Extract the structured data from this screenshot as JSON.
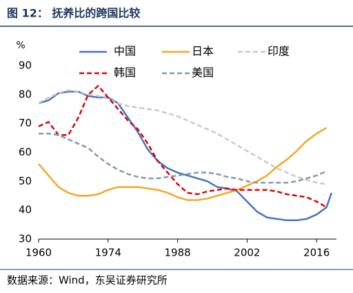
{
  "chart_data": {
    "type": "line",
    "title": "图 12：   抚养比的跨国比较",
    "y_label": "%",
    "source": "数据来源：Wind，东吴证券研究所",
    "x": [
      1960,
      1962,
      1964,
      1966,
      1968,
      1970,
      1972,
      1974,
      1976,
      1978,
      1980,
      1982,
      1984,
      1986,
      1988,
      1990,
      1992,
      1994,
      1996,
      1998,
      2000,
      2002,
      2004,
      2006,
      2008,
      2010,
      2012,
      2014,
      2016,
      2018,
      2019
    ],
    "xlim": [
      1960,
      2020
    ],
    "xticks": [
      1960,
      1974,
      1988,
      2002,
      2016
    ],
    "ylim": [
      30,
      90
    ],
    "yticks": [
      30,
      40,
      50,
      60,
      70,
      80,
      90
    ],
    "grid": false,
    "series": [
      {
        "name": "中国",
        "color": "#4472c4",
        "dashed": false,
        "values": [
          77,
          78,
          80.5,
          81,
          81,
          79.5,
          79,
          79,
          77,
          72,
          67,
          61,
          57,
          54.5,
          53,
          52,
          51,
          50,
          48,
          47.5,
          46.5,
          43,
          39.5,
          37.5,
          37,
          36.5,
          36.5,
          37,
          38.5,
          41,
          46
        ]
      },
      {
        "name": "日本",
        "color": "#f5a623",
        "dashed": false,
        "values": [
          56,
          52,
          48,
          46,
          45,
          45,
          45.5,
          47,
          48,
          48,
          48,
          47.5,
          47,
          46,
          44.5,
          43.5,
          43.5,
          44,
          45,
          46,
          47,
          48.5,
          50,
          52,
          55,
          57.5,
          60.5,
          64,
          66.5,
          68.5,
          null
        ]
      },
      {
        "name": "印度",
        "color": "#c8c8c8",
        "dashed": true,
        "values": [
          77,
          79,
          80.5,
          81.5,
          81,
          80,
          79.5,
          78.5,
          77,
          76,
          75.5,
          75,
          74.5,
          73.5,
          72.5,
          71,
          69.5,
          68,
          66.5,
          64.5,
          62.5,
          60.5,
          58.5,
          56.5,
          54.5,
          53,
          51.5,
          50.5,
          49.5,
          49,
          null
        ]
      },
      {
        "name": "韩国",
        "color": "#e00000",
        "dashed": true,
        "values": [
          69,
          70.5,
          66,
          66,
          72,
          80,
          83,
          79,
          75,
          71,
          68,
          63,
          57,
          53,
          49,
          46,
          45.5,
          46.5,
          47,
          47.5,
          47,
          47,
          47,
          47,
          46.5,
          45.5,
          45,
          44.5,
          43,
          41,
          null
        ]
      },
      {
        "name": "美国",
        "color": "#8497b0",
        "dashed": true,
        "values": [
          66.5,
          66.5,
          66,
          64.5,
          63,
          61.5,
          58.5,
          56,
          54,
          52.5,
          51.5,
          51,
          51,
          51.5,
          52,
          52.5,
          53,
          53,
          52.5,
          51.5,
          51,
          50,
          49.5,
          49.5,
          49.5,
          49.5,
          50,
          51,
          52,
          53.5,
          null
        ]
      }
    ]
  }
}
